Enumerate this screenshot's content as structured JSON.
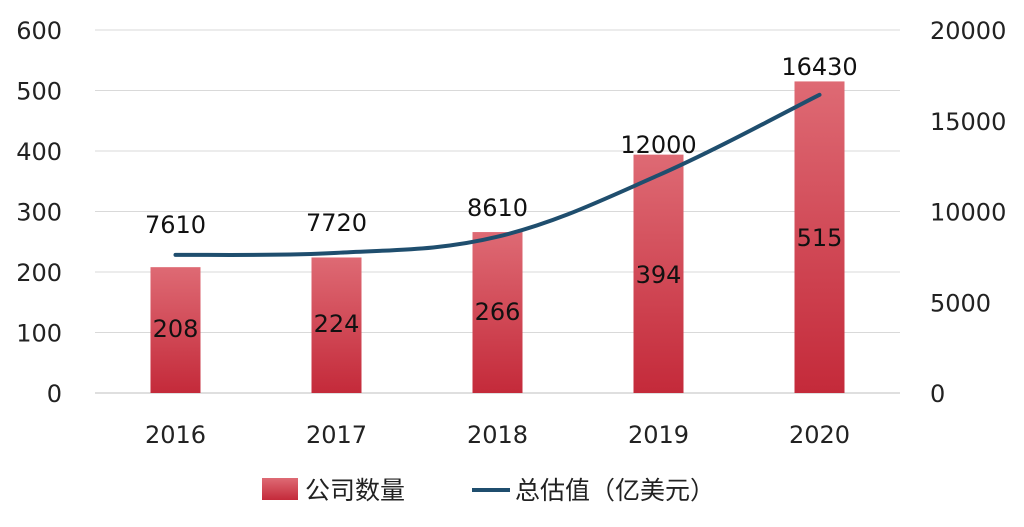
{
  "chart_data": {
    "type": "bar",
    "categories": [
      "2016",
      "2017",
      "2018",
      "2019",
      "2020"
    ],
    "series": [
      {
        "name": "公司数量",
        "type": "bar",
        "axis": "left",
        "values": [
          208,
          224,
          266,
          394,
          515
        ],
        "labels": [
          "208",
          "224",
          "266",
          "394",
          "515"
        ],
        "color": "#d03a48"
      },
      {
        "name": "总估值（亿美元）",
        "type": "line",
        "axis": "right",
        "values": [
          7610,
          7720,
          8610,
          12000,
          16430
        ],
        "labels": [
          "7610",
          "7720",
          "8610",
          "12000",
          "16430"
        ],
        "color": "#1f4e6e"
      }
    ],
    "y_left": {
      "min": 0,
      "max": 600,
      "ticks": [
        "0",
        "100",
        "200",
        "300",
        "400",
        "500",
        "600"
      ]
    },
    "y_right": {
      "min": 0,
      "max": 20000,
      "ticks": [
        "0",
        "5000",
        "10000",
        "15000",
        "20000"
      ]
    },
    "grid": true,
    "legend_position": "bottom",
    "title": "",
    "xlabel": "",
    "ylabel": ""
  }
}
